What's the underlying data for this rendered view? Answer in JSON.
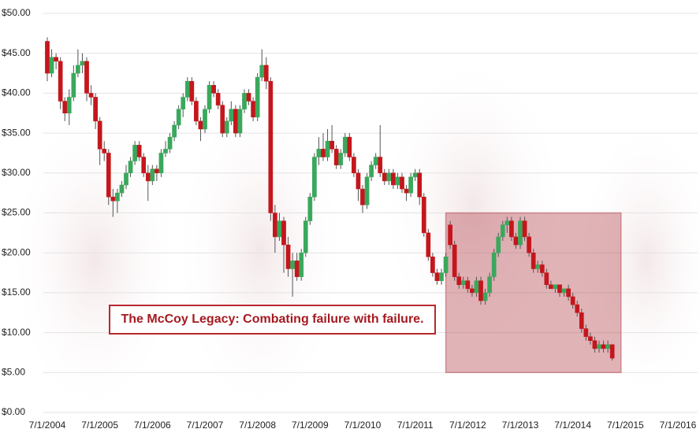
{
  "chart_data": {
    "type": "candlestick",
    "annotation": "The McCoy Legacy: Combating failure with failure.",
    "x": [
      "7/1/2004",
      "8/1/2004",
      "9/1/2004",
      "10/1/2004",
      "11/1/2004",
      "12/1/2004",
      "1/1/2005",
      "2/1/2005",
      "3/1/2005",
      "4/1/2005",
      "5/1/2005",
      "6/1/2005",
      "7/1/2005",
      "8/1/2005",
      "9/1/2005",
      "10/1/2005",
      "11/1/2005",
      "12/1/2005",
      "1/1/2006",
      "2/1/2006",
      "3/1/2006",
      "4/1/2006",
      "5/1/2006",
      "6/1/2006",
      "7/1/2006",
      "8/1/2006",
      "9/1/2006",
      "10/1/2006",
      "11/1/2006",
      "12/1/2006",
      "1/1/2007",
      "2/1/2007",
      "3/1/2007",
      "4/1/2007",
      "5/1/2007",
      "6/1/2007",
      "7/1/2007",
      "8/1/2007",
      "9/1/2007",
      "10/1/2007",
      "11/1/2007",
      "12/1/2007",
      "1/1/2008",
      "2/1/2008",
      "3/1/2008",
      "4/1/2008",
      "5/1/2008",
      "6/1/2008",
      "7/1/2008",
      "8/1/2008",
      "9/1/2008",
      "10/1/2008",
      "11/1/2008",
      "12/1/2008",
      "1/1/2009",
      "2/1/2009",
      "3/1/2009",
      "4/1/2009",
      "5/1/2009",
      "6/1/2009",
      "7/1/2009",
      "8/1/2009",
      "9/1/2009",
      "10/1/2009",
      "11/1/2009",
      "12/1/2009",
      "1/1/2010",
      "2/1/2010",
      "3/1/2010",
      "4/1/2010",
      "5/1/2010",
      "6/1/2010",
      "7/1/2010",
      "8/1/2010",
      "9/1/2010",
      "10/1/2010",
      "11/1/2010",
      "12/1/2010",
      "1/1/2011",
      "2/1/2011",
      "3/1/2011",
      "4/1/2011",
      "5/1/2011",
      "6/1/2011",
      "7/1/2011",
      "8/1/2011",
      "9/1/2011",
      "10/1/2011",
      "11/1/2011",
      "12/1/2011",
      "1/1/2012",
      "2/1/2012",
      "3/1/2012",
      "4/1/2012",
      "5/1/2012",
      "6/1/2012",
      "7/1/2012",
      "8/1/2012",
      "9/1/2012",
      "10/1/2012",
      "11/1/2012",
      "12/1/2012",
      "1/1/2013",
      "2/1/2013",
      "3/1/2013",
      "4/1/2013",
      "5/1/2013",
      "6/1/2013",
      "7/1/2013",
      "8/1/2013",
      "9/1/2013",
      "10/1/2013",
      "11/1/2013",
      "12/1/2013",
      "1/1/2014",
      "2/1/2014",
      "3/1/2014",
      "4/1/2014",
      "5/1/2014",
      "6/1/2014",
      "7/1/2014",
      "8/1/2014",
      "9/1/2014",
      "10/1/2014",
      "11/1/2014",
      "12/1/2014",
      "1/1/2015",
      "2/1/2015",
      "3/1/2015",
      "4/1/2015"
    ],
    "open": [
      46.5,
      42.5,
      44.5,
      44,
      39,
      37.5,
      39.5,
      42.5,
      43.5,
      44,
      40,
      39.5,
      36.5,
      33,
      32.5,
      27,
      26.5,
      27.5,
      28.5,
      30,
      31.5,
      33.5,
      32,
      30,
      29,
      30.5,
      30,
      32.5,
      33,
      34.5,
      36,
      38,
      39.5,
      41.5,
      39,
      36.5,
      35.5,
      38,
      41,
      40,
      38.5,
      35,
      36.5,
      38,
      35,
      38,
      40,
      39,
      37,
      42,
      43.5,
      41.5,
      25,
      22,
      24,
      21,
      18,
      19,
      17,
      20,
      24,
      27,
      32,
      33,
      32,
      34,
      33,
      31,
      32.5,
      34.5,
      32,
      30,
      28,
      26,
      29.5,
      31,
      32,
      30,
      29,
      30,
      28.5,
      29.5,
      28,
      27.5,
      29.5,
      30,
      27,
      22.5,
      19.5,
      17.5,
      16.5,
      17.5,
      23.5,
      21,
      17,
      16,
      16.5,
      15.5,
      15,
      16.5,
      14,
      15,
      17,
      20,
      22,
      23.5,
      24,
      22,
      21,
      24,
      22,
      20,
      18,
      18.5,
      17.5,
      16,
      15.5,
      16,
      15,
      15.5,
      14.5,
      13.5,
      12.5,
      10.5,
      9.5,
      9,
      8,
      8.5,
      8,
      8.5
    ],
    "high": [
      47,
      45.5,
      45,
      44.5,
      39.5,
      40.5,
      43.5,
      45.5,
      45,
      44.5,
      41,
      40,
      37,
      34,
      33,
      28,
      28,
      29,
      31,
      32,
      34,
      34,
      32.5,
      31,
      31,
      31,
      33,
      34,
      35,
      36.5,
      38.5,
      40,
      42,
      42,
      39.5,
      37,
      38.5,
      41.5,
      41.5,
      40.5,
      39,
      37,
      39,
      38.5,
      38.5,
      40.5,
      40.5,
      39.5,
      42.5,
      45.5,
      44.5,
      42,
      26,
      25,
      24.5,
      22,
      20,
      20,
      20.5,
      24.5,
      27.5,
      32.5,
      34.5,
      35,
      35.5,
      36,
      33.5,
      33,
      35,
      35,
      32.5,
      30.5,
      28.5,
      30,
      31.5,
      32.5,
      36,
      30.5,
      30.5,
      30.5,
      30,
      30,
      28.5,
      30,
      30.5,
      30.5,
      27.5,
      23,
      20,
      18,
      18,
      20,
      24,
      21.5,
      17.5,
      17,
      17,
      16,
      17,
      17,
      15.5,
      17.5,
      20.5,
      22.5,
      24,
      24.5,
      24.5,
      22.5,
      24.5,
      24.5,
      22.5,
      20.5,
      19,
      19,
      18,
      16.5,
      16,
      16,
      15.5,
      16,
      15,
      14,
      13,
      11,
      10,
      9.5,
      9,
      9,
      9,
      8.5
    ],
    "low": [
      41.5,
      42,
      43,
      38,
      36.5,
      36,
      39,
      42,
      42.5,
      39,
      38.5,
      35.5,
      31,
      31.5,
      26,
      24.5,
      25,
      27,
      28,
      29.5,
      31,
      31.5,
      29.5,
      26.5,
      28.5,
      29,
      29.5,
      32,
      32.5,
      34,
      35.5,
      37,
      39,
      38.5,
      36,
      34,
      35,
      37.5,
      39.5,
      38,
      34.5,
      34.5,
      36,
      34.5,
      34.5,
      37.5,
      38.5,
      36.5,
      36.5,
      41.5,
      40.5,
      24,
      20,
      21.5,
      17.5,
      17,
      14.5,
      16.5,
      16.5,
      19.5,
      23.5,
      26.5,
      31,
      31.5,
      31.5,
      32.5,
      30.5,
      30.5,
      32,
      31.5,
      29.5,
      26.5,
      25,
      25.5,
      29,
      30.5,
      29.5,
      28.5,
      28.5,
      28,
      28,
      27.5,
      26.5,
      27,
      29,
      26,
      22,
      19,
      17,
      16,
      16,
      17,
      20.5,
      16.5,
      15.5,
      15.5,
      15,
      14.5,
      14.5,
      13.5,
      13.5,
      14.5,
      16.5,
      19.5,
      21.5,
      22.5,
      21.5,
      20.5,
      20.5,
      21.5,
      19.5,
      17.5,
      17.5,
      17,
      15.5,
      15.5,
      15,
      14.5,
      14.5,
      14,
      13,
      12,
      10,
      9,
      8.5,
      7.5,
      7.5,
      7.5,
      7.5,
      6.5
    ],
    "close": [
      42.5,
      44.5,
      44,
      39,
      37.5,
      39.5,
      42.5,
      43.5,
      44,
      40,
      39.5,
      36.5,
      33,
      32.5,
      27,
      26.5,
      27.5,
      28.5,
      30,
      31.5,
      33.5,
      32,
      30,
      29,
      30.5,
      30,
      32.5,
      33,
      34.5,
      36,
      38,
      39.5,
      41.5,
      39,
      36.5,
      35.5,
      38,
      41,
      40,
      38.5,
      35,
      36.5,
      38,
      35,
      38,
      40,
      39,
      37,
      42,
      43.5,
      41.5,
      25,
      22,
      24,
      21,
      18,
      19,
      17,
      20,
      24,
      27,
      32,
      33,
      32,
      34,
      33,
      31,
      32.5,
      34.5,
      32,
      30,
      28,
      26,
      29.5,
      31,
      32,
      30,
      29,
      30,
      28.5,
      29.5,
      28,
      27.5,
      29.5,
      30,
      27,
      22.5,
      19.5,
      17.5,
      16.5,
      17.5,
      19.5,
      21,
      17,
      16,
      16.5,
      15.5,
      15,
      16.5,
      14,
      15,
      17,
      20,
      22,
      23.5,
      24,
      22,
      21,
      24,
      22,
      20,
      18,
      18.5,
      17.5,
      16,
      15.5,
      16,
      15,
      15.5,
      14.5,
      13.5,
      12.5,
      10.5,
      9.5,
      9,
      8,
      8.5,
      8,
      8.5,
      6.8
    ],
    "up_color": "#3aa85c",
    "down_color": "#c4161c",
    "highlight": {
      "x": [
        "2/1/2012",
        "6/1/2015"
      ],
      "y": [
        5,
        25
      ],
      "color": "#b2424a"
    },
    "xlim": [
      "7/1/2004",
      "7/1/2016"
    ],
    "xticks": [
      "7/1/2004",
      "7/1/2005",
      "7/1/2006",
      "7/1/2007",
      "7/1/2008",
      "7/1/2009",
      "7/1/2010",
      "7/1/2011",
      "7/1/2012",
      "7/1/2013",
      "7/1/2014",
      "7/1/2015",
      "7/1/2016"
    ],
    "ylim": [
      0,
      50
    ],
    "yticks": [
      {
        "value": 0,
        "label": "$0.00"
      },
      {
        "value": 5,
        "label": "$5.00"
      },
      {
        "value": 10,
        "label": "$10.00"
      },
      {
        "value": 15,
        "label": "$15.00"
      },
      {
        "value": 20,
        "label": "$20.00"
      },
      {
        "value": 25,
        "label": "$25.00"
      },
      {
        "value": 30,
        "label": "$30.00"
      },
      {
        "value": 35,
        "label": "$35.00"
      },
      {
        "value": 40,
        "label": "$40.00"
      },
      {
        "value": 45,
        "label": "$45.00"
      },
      {
        "value": 50,
        "label": "$50.00"
      }
    ],
    "grid": true
  }
}
